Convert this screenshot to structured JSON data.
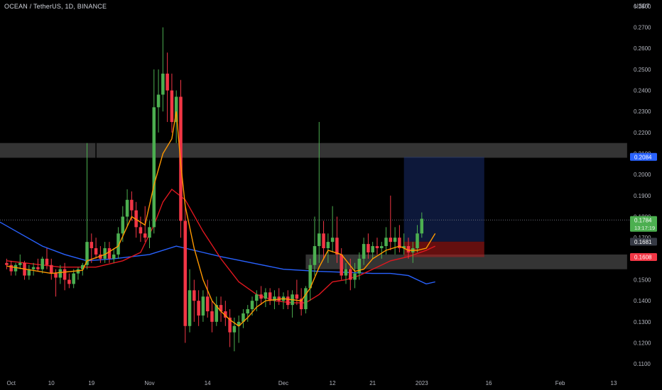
{
  "header": {
    "title": "OCEAN / TetherUS, 1D, BINANCE",
    "currency": "USDT"
  },
  "chart_data": {
    "type": "candlestick",
    "symbol": "OCEAN / TetherUS",
    "interval": "1D",
    "exchange": "BINANCE",
    "ylim": [
      0.105,
      0.283
    ],
    "y_ticks": [
      "0.1100",
      "0.1200",
      "0.1300",
      "0.1400",
      "0.1500",
      "0.1600",
      "0.1700",
      "0.1800",
      "0.1900",
      "0.2000",
      "0.2100",
      "0.2200",
      "0.2300",
      "0.2400",
      "0.2500",
      "0.2600",
      "0.2700",
      "0.2800"
    ],
    "x_ticks": [
      {
        "label": "Oct",
        "day": 1
      },
      {
        "label": "10",
        "day": 10
      },
      {
        "label": "19",
        "day": 19
      },
      {
        "label": "Nov",
        "day": 32
      },
      {
        "label": "14",
        "day": 45
      },
      {
        "label": "Dec",
        "day": 62
      },
      {
        "label": "12",
        "day": 73
      },
      {
        "label": "21",
        "day": 82
      },
      {
        "label": "2023",
        "day": 93
      },
      {
        "label": "16",
        "day": 108
      },
      {
        "label": "Feb",
        "day": 124
      },
      {
        "label": "13",
        "day": 136
      }
    ],
    "xlim_days": [
      -1.5,
      139.5
    ],
    "colors": {
      "up": "#4caf50",
      "down": "#f23645",
      "ma_fast": "#ff9800",
      "ma_mid": "#e0171f",
      "ma_slow": "#2962ff"
    },
    "candles": [
      [
        0.158,
        0.16,
        0.155,
        0.157
      ],
      [
        0.157,
        0.159,
        0.152,
        0.154
      ],
      [
        0.154,
        0.158,
        0.152,
        0.157
      ],
      [
        0.157,
        0.162,
        0.155,
        0.158
      ],
      [
        0.158,
        0.159,
        0.15,
        0.152
      ],
      [
        0.152,
        0.157,
        0.15,
        0.155
      ],
      [
        0.155,
        0.158,
        0.152,
        0.156
      ],
      [
        0.156,
        0.16,
        0.154,
        0.155
      ],
      [
        0.155,
        0.161,
        0.153,
        0.16
      ],
      [
        0.16,
        0.165,
        0.155,
        0.157
      ],
      [
        0.157,
        0.16,
        0.15,
        0.153
      ],
      [
        0.153,
        0.155,
        0.142,
        0.151
      ],
      [
        0.151,
        0.157,
        0.148,
        0.155
      ],
      [
        0.155,
        0.158,
        0.145,
        0.15
      ],
      [
        0.15,
        0.153,
        0.146,
        0.148
      ],
      [
        0.148,
        0.155,
        0.146,
        0.153
      ],
      [
        0.153,
        0.156,
        0.15,
        0.155
      ],
      [
        0.155,
        0.158,
        0.152,
        0.157
      ],
      [
        0.157,
        0.215,
        0.155,
        0.168
      ],
      [
        0.168,
        0.172,
        0.158,
        0.165
      ],
      [
        0.165,
        0.17,
        0.16,
        0.162
      ],
      [
        0.162,
        0.166,
        0.158,
        0.16
      ],
      [
        0.16,
        0.168,
        0.158,
        0.165
      ],
      [
        0.165,
        0.168,
        0.158,
        0.16
      ],
      [
        0.16,
        0.165,
        0.158,
        0.162
      ],
      [
        0.162,
        0.175,
        0.16,
        0.172
      ],
      [
        0.172,
        0.185,
        0.168,
        0.18
      ],
      [
        0.18,
        0.193,
        0.175,
        0.188
      ],
      [
        0.188,
        0.192,
        0.178,
        0.183
      ],
      [
        0.183,
        0.187,
        0.17,
        0.175
      ],
      [
        0.175,
        0.18,
        0.168,
        0.172
      ],
      [
        0.172,
        0.185,
        0.168,
        0.17
      ],
      [
        0.17,
        0.178,
        0.165,
        0.175
      ],
      [
        0.175,
        0.25,
        0.172,
        0.232
      ],
      [
        0.232,
        0.25,
        0.22,
        0.238
      ],
      [
        0.238,
        0.27,
        0.23,
        0.248
      ],
      [
        0.248,
        0.258,
        0.225,
        0.24
      ],
      [
        0.24,
        0.248,
        0.22,
        0.225
      ],
      [
        0.225,
        0.24,
        0.215,
        0.237
      ],
      [
        0.237,
        0.245,
        0.17,
        0.178
      ],
      [
        0.178,
        0.185,
        0.12,
        0.128
      ],
      [
        0.128,
        0.155,
        0.125,
        0.145
      ],
      [
        0.145,
        0.15,
        0.13,
        0.14
      ],
      [
        0.14,
        0.145,
        0.128,
        0.133
      ],
      [
        0.133,
        0.145,
        0.13,
        0.142
      ],
      [
        0.142,
        0.15,
        0.132,
        0.135
      ],
      [
        0.135,
        0.14,
        0.125,
        0.13
      ],
      [
        0.13,
        0.142,
        0.128,
        0.138
      ],
      [
        0.138,
        0.142,
        0.13,
        0.135
      ],
      [
        0.135,
        0.14,
        0.128,
        0.132
      ],
      [
        0.132,
        0.136,
        0.118,
        0.125
      ],
      [
        0.125,
        0.132,
        0.116,
        0.128
      ],
      [
        0.128,
        0.133,
        0.12,
        0.13
      ],
      [
        0.13,
        0.136,
        0.127,
        0.134
      ],
      [
        0.134,
        0.138,
        0.13,
        0.136
      ],
      [
        0.136,
        0.142,
        0.133,
        0.14
      ],
      [
        0.14,
        0.145,
        0.135,
        0.143
      ],
      [
        0.143,
        0.147,
        0.138,
        0.141
      ],
      [
        0.141,
        0.146,
        0.137,
        0.144
      ],
      [
        0.144,
        0.146,
        0.138,
        0.14
      ],
      [
        0.14,
        0.145,
        0.136,
        0.142
      ],
      [
        0.142,
        0.146,
        0.138,
        0.14
      ],
      [
        0.14,
        0.144,
        0.136,
        0.142
      ],
      [
        0.142,
        0.145,
        0.136,
        0.138
      ],
      [
        0.138,
        0.145,
        0.132,
        0.143
      ],
      [
        0.143,
        0.15,
        0.138,
        0.141
      ],
      [
        0.141,
        0.146,
        0.133,
        0.136
      ],
      [
        0.136,
        0.147,
        0.134,
        0.146
      ],
      [
        0.146,
        0.16,
        0.14,
        0.157
      ],
      [
        0.157,
        0.18,
        0.152,
        0.166
      ],
      [
        0.166,
        0.225,
        0.158,
        0.172
      ],
      [
        0.172,
        0.178,
        0.16,
        0.165
      ],
      [
        0.165,
        0.172,
        0.158,
        0.168
      ],
      [
        0.168,
        0.185,
        0.163,
        0.17
      ],
      [
        0.17,
        0.18,
        0.158,
        0.162
      ],
      [
        0.162,
        0.165,
        0.15,
        0.152
      ],
      [
        0.152,
        0.158,
        0.148,
        0.155
      ],
      [
        0.155,
        0.16,
        0.145,
        0.15
      ],
      [
        0.15,
        0.158,
        0.146,
        0.153
      ],
      [
        0.153,
        0.163,
        0.15,
        0.16
      ],
      [
        0.16,
        0.17,
        0.157,
        0.167
      ],
      [
        0.167,
        0.172,
        0.16,
        0.163
      ],
      [
        0.163,
        0.168,
        0.16,
        0.166
      ],
      [
        0.166,
        0.17,
        0.162,
        0.165
      ],
      [
        0.165,
        0.168,
        0.16,
        0.166
      ],
      [
        0.166,
        0.175,
        0.162,
        0.17
      ],
      [
        0.17,
        0.19,
        0.164,
        0.168
      ],
      [
        0.168,
        0.175,
        0.162,
        0.17
      ],
      [
        0.17,
        0.176,
        0.163,
        0.165
      ],
      [
        0.165,
        0.172,
        0.162,
        0.166
      ],
      [
        0.166,
        0.17,
        0.16,
        0.163
      ],
      [
        0.163,
        0.168,
        0.158,
        0.165
      ],
      [
        0.165,
        0.176,
        0.163,
        0.172
      ],
      [
        0.172,
        0.182,
        0.17,
        0.179
      ]
    ],
    "ma_fast": [
      [
        0,
        0.1565
      ],
      [
        10,
        0.153
      ],
      [
        17,
        0.1545
      ],
      [
        18,
        0.159
      ],
      [
        22,
        0.162
      ],
      [
        25,
        0.166
      ],
      [
        28,
        0.18
      ],
      [
        31,
        0.176
      ],
      [
        33,
        0.195
      ],
      [
        35,
        0.21
      ],
      [
        37,
        0.217
      ],
      [
        38,
        0.23
      ],
      [
        39,
        0.205
      ],
      [
        40,
        0.185
      ],
      [
        42,
        0.165
      ],
      [
        44,
        0.15
      ],
      [
        46,
        0.14
      ],
      [
        48,
        0.135
      ],
      [
        50,
        0.131
      ],
      [
        52,
        0.128
      ],
      [
        54,
        0.132
      ],
      [
        56,
        0.137
      ],
      [
        58,
        0.14
      ],
      [
        62,
        0.141
      ],
      [
        66,
        0.14
      ],
      [
        68,
        0.146
      ],
      [
        70,
        0.156
      ],
      [
        72,
        0.164
      ],
      [
        75,
        0.162
      ],
      [
        78,
        0.154
      ],
      [
        80,
        0.155
      ],
      [
        82,
        0.16
      ],
      [
        85,
        0.164
      ],
      [
        88,
        0.166
      ],
      [
        90,
        0.164
      ],
      [
        92,
        0.164
      ],
      [
        94,
        0.165
      ],
      [
        96,
        0.172
      ]
    ],
    "ma_mid": [
      [
        0,
        0.159
      ],
      [
        12,
        0.156
      ],
      [
        20,
        0.156
      ],
      [
        26,
        0.159
      ],
      [
        30,
        0.163
      ],
      [
        33,
        0.176
      ],
      [
        35,
        0.187
      ],
      [
        37,
        0.193
      ],
      [
        40,
        0.188
      ],
      [
        44,
        0.173
      ],
      [
        48,
        0.16
      ],
      [
        52,
        0.149
      ],
      [
        56,
        0.143
      ],
      [
        60,
        0.14
      ],
      [
        64,
        0.139
      ],
      [
        67,
        0.139
      ],
      [
        70,
        0.143
      ],
      [
        73,
        0.149
      ],
      [
        76,
        0.15
      ],
      [
        79,
        0.152
      ],
      [
        82,
        0.155
      ],
      [
        86,
        0.159
      ],
      [
        90,
        0.161
      ],
      [
        94,
        0.164
      ],
      [
        96,
        0.166
      ]
    ],
    "ma_slow": [
      [
        -2,
        0.178
      ],
      [
        3,
        0.172
      ],
      [
        8,
        0.166
      ],
      [
        13,
        0.162
      ],
      [
        18,
        0.159
      ],
      [
        24,
        0.16
      ],
      [
        32,
        0.162
      ],
      [
        38,
        0.166
      ],
      [
        42,
        0.164
      ],
      [
        48,
        0.161
      ],
      [
        55,
        0.158
      ],
      [
        62,
        0.155
      ],
      [
        70,
        0.154
      ],
      [
        76,
        0.1535
      ],
      [
        82,
        0.153
      ],
      [
        86,
        0.153
      ],
      [
        90,
        0.152
      ],
      [
        92,
        0.15
      ],
      [
        94,
        0.148
      ],
      [
        96,
        0.149
      ]
    ],
    "zones": [
      {
        "day_from": -2,
        "day_to": 139,
        "y_low": 0.208,
        "y_high": 0.215
      },
      {
        "day_from": 67,
        "day_to": 139,
        "y_low": 0.155,
        "y_high": 0.162
      }
    ],
    "zone_divider_day": 20,
    "position": {
      "day_from": 89,
      "day_to": 107,
      "entry": 0.1681,
      "target": 0.2084,
      "stop": 0.1608
    },
    "last_price": 0.1784,
    "price_tags": [
      {
        "label": "0.2084",
        "value": 0.2084,
        "color": "#2962ff"
      },
      {
        "label": "0.1784",
        "value": 0.1784,
        "color": "#4caf50",
        "sub": "13:17:19"
      },
      {
        "label": "0.1681",
        "value": 0.1681,
        "color": "#363a45"
      },
      {
        "label": "0.1608",
        "value": 0.1608,
        "color": "#f23645"
      }
    ]
  }
}
